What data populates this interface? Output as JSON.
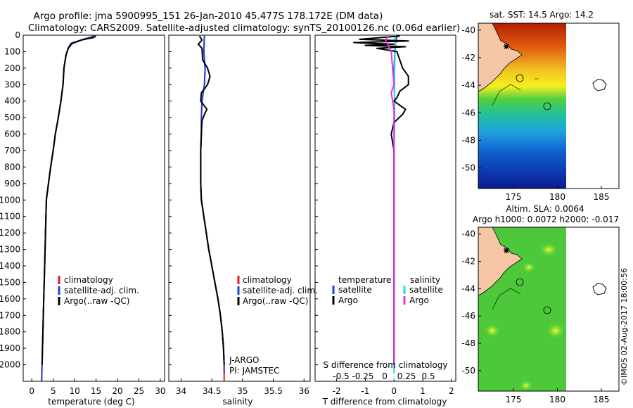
{
  "title": {
    "line1": "Argo profile: jma 5900995_151 26-Jan-2010 45.477S 178.172E (DM data)",
    "line2": "Climatology: CARS2009. Satellite-adjusted climatology: synTS_20100126.nc (0.06d earlier)"
  },
  "credit": "©IMOS 02-Aug-2017 18:00:56",
  "colors": {
    "clim": "#e41a1c",
    "sat": "#1f3fd6",
    "argo": "#000000",
    "satS": "#33d6e6",
    "argoS": "#e633e6",
    "land": "#f5c6a5"
  },
  "chart_data": [
    {
      "type": "line",
      "name": "temperature",
      "xlabel": "temperature (deg C)",
      "xlim": [
        -2,
        31
      ],
      "xticks": [
        0,
        5,
        10,
        15,
        20,
        25,
        30
      ],
      "ylim": [
        2100,
        0
      ],
      "yticks": [
        0,
        100,
        200,
        300,
        400,
        500,
        600,
        700,
        800,
        900,
        1000,
        1100,
        1200,
        1300,
        1400,
        1500,
        1600,
        1700,
        1800,
        1900,
        2000
      ],
      "legend": [
        "climatology",
        "satellite-adj. clim.",
        "Argo(..raw -QC)"
      ],
      "series": [
        {
          "name": "climatology",
          "color": "#e41a1c",
          "points": [
            [
              14.5,
              0
            ],
            [
              14,
              10
            ],
            [
              12,
              25
            ],
            [
              9.5,
              50
            ],
            [
              8.5,
              80
            ],
            [
              8,
              120
            ],
            [
              7.5,
              200
            ],
            [
              7.3,
              300
            ],
            [
              6.8,
              400
            ],
            [
              6.2,
              500
            ],
            [
              5.5,
              600
            ],
            [
              5,
              700
            ],
            [
              4.4,
              800
            ],
            [
              3.9,
              900
            ],
            [
              3.4,
              1000
            ],
            [
              3.2,
              1200
            ],
            [
              3,
              1400
            ],
            [
              2.8,
              1600
            ],
            [
              2.6,
              1800
            ],
            [
              2.4,
              2000
            ],
            [
              2.3,
              2100
            ]
          ]
        },
        {
          "name": "satellite-adj. clim.",
          "color": "#1f3fd6",
          "points": [
            [
              14.6,
              0
            ],
            [
              14.2,
              10
            ],
            [
              12,
              25
            ],
            [
              9.5,
              50
            ],
            [
              8.5,
              80
            ],
            [
              8,
              120
            ],
            [
              7.5,
              200
            ],
            [
              7.3,
              300
            ],
            [
              6.8,
              400
            ],
            [
              6.2,
              500
            ],
            [
              5.5,
              600
            ],
            [
              5,
              700
            ],
            [
              4.4,
              800
            ],
            [
              3.9,
              900
            ],
            [
              3.4,
              1000
            ],
            [
              3.2,
              1200
            ],
            [
              3,
              1400
            ],
            [
              2.8,
              1600
            ],
            [
              2.6,
              1800
            ],
            [
              2.4,
              2000
            ],
            [
              2.3,
              2100
            ]
          ]
        },
        {
          "name": "Argo",
          "color": "#000000",
          "points": [
            [
              15,
              5
            ],
            [
              14.3,
              15
            ],
            [
              11.5,
              30
            ],
            [
              9.2,
              50
            ],
            [
              8.5,
              80
            ],
            [
              8,
              120
            ],
            [
              7.5,
              200
            ],
            [
              7.3,
              300
            ],
            [
              6.8,
              400
            ],
            [
              6.2,
              500
            ],
            [
              5.5,
              600
            ],
            [
              5,
              700
            ],
            [
              4.4,
              800
            ],
            [
              3.9,
              900
            ],
            [
              3.4,
              1000
            ],
            [
              3.2,
              1200
            ],
            [
              3,
              1400
            ],
            [
              2.8,
              1600
            ],
            [
              2.6,
              1800
            ],
            [
              2.4,
              2000
            ]
          ]
        }
      ]
    },
    {
      "type": "line",
      "name": "salinity",
      "xlabel": "salinity",
      "xlim": [
        33.8,
        36.1
      ],
      "xticks": [
        34,
        34.5,
        35,
        35.5,
        36
      ],
      "ylim": [
        2100,
        0
      ],
      "legend": [
        "climatology",
        "satellite-adj. clim.",
        "Argo(..raw -QC)"
      ],
      "annotation": [
        "J-ARGO",
        "PI: JAMSTEC"
      ],
      "series": [
        {
          "name": "climatology",
          "color": "#e41a1c",
          "points": [
            [
              34.38,
              0
            ],
            [
              34.37,
              100
            ],
            [
              34.39,
              200
            ],
            [
              34.38,
              300
            ],
            [
              34.34,
              400
            ],
            [
              34.33,
              500
            ],
            [
              34.33,
              600
            ],
            [
              34.32,
              700
            ],
            [
              34.32,
              800
            ],
            [
              34.32,
              900
            ],
            [
              34.33,
              1000
            ],
            [
              34.37,
              1100
            ],
            [
              34.41,
              1200
            ],
            [
              34.45,
              1300
            ],
            [
              34.5,
              1400
            ],
            [
              34.55,
              1500
            ],
            [
              34.6,
              1600
            ],
            [
              34.64,
              1700
            ],
            [
              34.67,
              1800
            ],
            [
              34.69,
              1900
            ],
            [
              34.7,
              2000
            ],
            [
              34.7,
              2100
            ]
          ]
        },
        {
          "name": "satellite-adj. clim.",
          "color": "#1f3fd6",
          "points": [
            [
              34.38,
              0
            ],
            [
              34.37,
              100
            ],
            [
              34.39,
              200
            ],
            [
              34.38,
              300
            ],
            [
              34.34,
              400
            ],
            [
              34.33,
              500
            ],
            [
              34.33,
              600
            ],
            [
              34.32,
              700
            ],
            [
              34.32,
              800
            ],
            [
              34.32,
              900
            ],
            [
              34.33,
              1000
            ],
            [
              34.37,
              1100
            ],
            [
              34.41,
              1200
            ],
            [
              34.45,
              1300
            ],
            [
              34.5,
              1400
            ],
            [
              34.55,
              1500
            ],
            [
              34.6,
              1600
            ],
            [
              34.64,
              1700
            ],
            [
              34.67,
              1800
            ],
            [
              34.69,
              1900
            ],
            [
              34.7,
              2000
            ],
            [
              34.7,
              2050
            ]
          ]
        },
        {
          "name": "Argo",
          "color": "#000000",
          "points": [
            [
              34.3,
              5
            ],
            [
              34.34,
              30
            ],
            [
              34.28,
              55
            ],
            [
              34.34,
              80
            ],
            [
              34.35,
              150
            ],
            [
              34.43,
              200
            ],
            [
              34.47,
              250
            ],
            [
              34.43,
              300
            ],
            [
              34.33,
              350
            ],
            [
              34.32,
              400
            ],
            [
              34.42,
              450
            ],
            [
              34.38,
              480
            ],
            [
              34.34,
              520
            ],
            [
              34.33,
              600
            ],
            [
              34.32,
              700
            ],
            [
              34.32,
              800
            ],
            [
              34.32,
              900
            ],
            [
              34.33,
              1000
            ],
            [
              34.37,
              1100
            ],
            [
              34.41,
              1200
            ],
            [
              34.45,
              1300
            ],
            [
              34.5,
              1400
            ],
            [
              34.55,
              1500
            ],
            [
              34.6,
              1600
            ],
            [
              34.64,
              1700
            ],
            [
              34.67,
              1800
            ],
            [
              34.69,
              1900
            ],
            [
              34.7,
              2000
            ]
          ]
        }
      ]
    },
    {
      "type": "line",
      "name": "difference",
      "xlabel": "T difference from climatology",
      "x2label": "S difference from climatology",
      "xlim": [
        -2.75,
        2.15
      ],
      "xticks": [
        -2,
        -1,
        0,
        1,
        2
      ],
      "sticks": [
        "-0.5",
        "-0.25",
        "0",
        "0.25",
        "0.5"
      ],
      "ylim": [
        2100,
        0
      ],
      "legend_t": [
        "temperature",
        "satellite",
        "Argo"
      ],
      "legend_s": [
        "salinity",
        "satellite",
        "Argo"
      ],
      "series": [
        {
          "name": "T satellite",
          "color": "#1f3fd6",
          "points": [
            [
              0.1,
              0
            ],
            [
              0.05,
              50
            ],
            [
              0,
              200
            ],
            [
              0.02,
              400
            ],
            [
              0,
              800
            ],
            [
              0,
              2000
            ]
          ]
        },
        {
          "name": "S satellite",
          "color": "#33d6e6",
          "points": [
            [
              0.05,
              0
            ],
            [
              0.02,
              200
            ],
            [
              0.01,
              500
            ],
            [
              0,
              1000
            ],
            [
              0,
              2050
            ]
          ]
        },
        {
          "name": "T Argo",
          "color": "#000000",
          "points": [
            [
              0.2,
              5
            ],
            [
              -1.2,
              25
            ],
            [
              0.5,
              35
            ],
            [
              -1.4,
              45
            ],
            [
              0,
              55
            ],
            [
              -1,
              62
            ],
            [
              0.4,
              70
            ],
            [
              -0.6,
              80
            ],
            [
              0.1,
              100
            ],
            [
              0.2,
              150
            ],
            [
              0.3,
              200
            ],
            [
              0.5,
              250
            ],
            [
              0.5,
              300
            ],
            [
              0.2,
              340
            ],
            [
              0.1,
              380
            ],
            [
              0,
              400
            ],
            [
              0.4,
              450
            ],
            [
              0.3,
              480
            ],
            [
              0,
              530
            ],
            [
              -0.1,
              600
            ],
            [
              0,
              700
            ],
            [
              0,
              800
            ],
            [
              0,
              900
            ],
            [
              0,
              2000
            ]
          ]
        },
        {
          "name": "S Argo",
          "color": "#e633e6",
          "points": [
            [
              -0.2,
              5
            ],
            [
              -0.3,
              30
            ],
            [
              -0.2,
              60
            ],
            [
              -0.1,
              100
            ],
            [
              -0.05,
              200
            ],
            [
              0,
              300
            ],
            [
              -0.1,
              350
            ],
            [
              -0.05,
              400
            ],
            [
              0,
              450
            ],
            [
              0,
              500
            ],
            [
              0,
              600
            ],
            [
              0,
              800
            ],
            [
              0,
              2000
            ]
          ]
        }
      ]
    }
  ],
  "maps": [
    {
      "title": "sat. SST: 14.5 Argo: 14.2",
      "yticks": [
        "-40",
        "-42",
        "-44",
        "-46",
        "-48",
        "-50"
      ],
      "xticks": [
        "175",
        "180",
        "185"
      ]
    },
    {
      "title_line1": "Altim. SLA: 0.0064",
      "title_line2": "Argo h1000: 0.0072 h2000: -0.017",
      "yticks": [
        "-40",
        "-42",
        "-44",
        "-46",
        "-48",
        "-50"
      ],
      "xticks": [
        "175",
        "180",
        "185"
      ]
    }
  ]
}
